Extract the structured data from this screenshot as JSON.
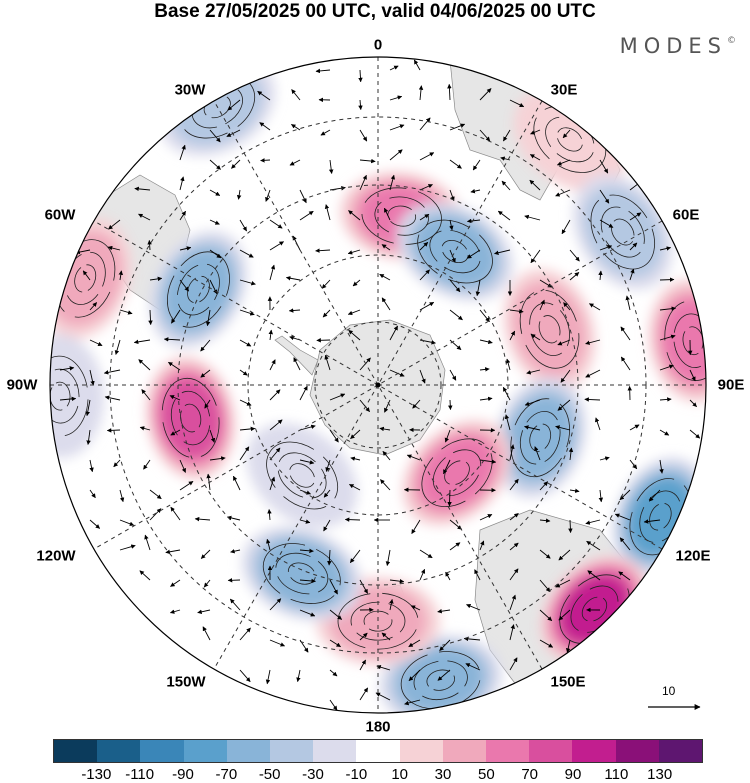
{
  "title": "Base 27/05/2025 00 UTC, valid 04/06/2025 00 UTC",
  "brand": "MODES",
  "brand_mark": "©",
  "longitude_labels": {
    "lon_0": "0",
    "lon_30e": "30E",
    "lon_60e": "60E",
    "lon_90e": "90E",
    "lon_120e": "120E",
    "lon_150e": "150E",
    "lon_180": "180",
    "lon_150w": "150W",
    "lon_120w": "120W",
    "lon_90w": "90W",
    "lon_60w": "60W",
    "lon_30w": "30W"
  },
  "reference_vector": {
    "label": "10"
  },
  "colorbar": {
    "colors": [
      "#0b3b5c",
      "#1a5f8a",
      "#3a86b8",
      "#5aa0cc",
      "#89b4d8",
      "#b4c8e2",
      "#dcdcec",
      "#ffffff",
      "#f6d2d6",
      "#f0a9bc",
      "#ea78ad",
      "#d94f9e",
      "#c21e8f",
      "#8a1078",
      "#5e1670"
    ],
    "ticks": [
      "-130",
      "-110",
      "-90",
      "-70",
      "-50",
      "-30",
      "-10",
      "10",
      "30",
      "50",
      "70",
      "90",
      "110",
      "130"
    ]
  },
  "map": {
    "projection": "south-polar-stereographic",
    "anomaly_centres": [
      {
        "lon_deg": 8,
        "colat_frac": 0.52,
        "value": 60
      },
      {
        "lon_deg": 30,
        "colat_frac": 0.47,
        "value": -70
      },
      {
        "lon_deg": 38,
        "colat_frac": 0.95,
        "value": 30
      },
      {
        "lon_deg": 58,
        "colat_frac": 0.88,
        "value": -40
      },
      {
        "lon_deg": 72,
        "colat_frac": 0.55,
        "value": 50
      },
      {
        "lon_deg": 82,
        "colat_frac": 0.97,
        "value": 60
      },
      {
        "lon_deg": 108,
        "colat_frac": 0.52,
        "value": -70
      },
      {
        "lon_deg": 115,
        "colat_frac": 0.95,
        "value": -80
      },
      {
        "lon_deg": 138,
        "colat_frac": 0.36,
        "value": 70
      },
      {
        "lon_deg": 136,
        "colat_frac": 0.95,
        "value": 100
      },
      {
        "lon_deg": 168,
        "colat_frac": 0.92,
        "value": -60
      },
      {
        "lon_deg": 180,
        "colat_frac": 0.72,
        "value": 50
      },
      {
        "lon_deg": -158,
        "colat_frac": 0.62,
        "value": -60
      },
      {
        "lon_deg": -140,
        "colat_frac": 0.36,
        "value": -30
      },
      {
        "lon_deg": -100,
        "colat_frac": 0.58,
        "value": 90
      },
      {
        "lon_deg": -62,
        "colat_frac": 0.62,
        "value": -70
      },
      {
        "lon_deg": -70,
        "colat_frac": 0.95,
        "value": 40
      },
      {
        "lon_deg": -30,
        "colat_frac": 0.98,
        "value": -40
      },
      {
        "lon_deg": -92,
        "colat_frac": 0.97,
        "value": -30
      }
    ]
  }
}
